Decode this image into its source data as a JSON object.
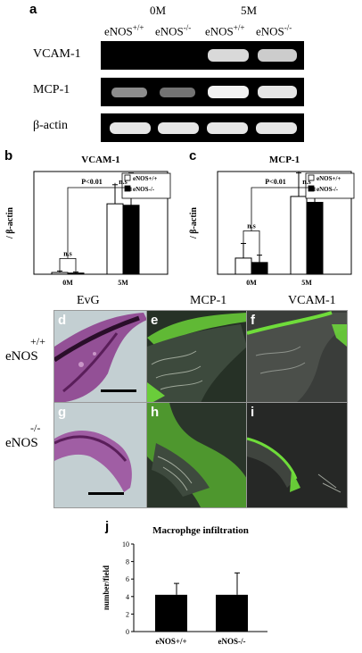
{
  "panel_a": {
    "letter": "a",
    "time_labels": [
      "0M",
      "5M"
    ],
    "genotypes": [
      "eNOS",
      "+/+",
      "eNOS",
      "-/-",
      "eNOS",
      "+/+",
      "eNOS",
      "-/-"
    ],
    "rows": [
      "VCAM-1",
      "MCP-1",
      "β-actin"
    ],
    "band_intensity": {
      "VCAM-1": [
        0.0,
        0.0,
        0.85,
        0.8
      ],
      "MCP-1": [
        0.55,
        0.45,
        0.95,
        0.9
      ],
      "β-actin": [
        0.9,
        0.9,
        0.9,
        0.9
      ]
    }
  },
  "panel_b": {
    "letter": "b",
    "chart_data": {
      "type": "bar",
      "title": "VCAM-1",
      "ylabel": "/ β-actin",
      "categories": [
        "0M",
        "5M"
      ],
      "ylim": [
        0,
        0.7
      ],
      "series": [
        {
          "name": "eNOS+/+",
          "values": [
            0.012,
            0.48
          ],
          "errors": [
            0.01,
            0.13
          ],
          "color": "#ffffff"
        },
        {
          "name": "eNOS-/-",
          "values": [
            0.008,
            0.47
          ],
          "errors": [
            0.008,
            0.22
          ],
          "color": "#000000"
        }
      ],
      "annotations": [
        "n.s",
        "P<0.01",
        "n.s"
      ],
      "legend_position": "top-right"
    }
  },
  "panel_c": {
    "letter": "c",
    "chart_data": {
      "type": "bar",
      "title": "MCP-1",
      "ylabel": "/ β-actin",
      "categories": [
        "0M",
        "5M"
      ],
      "ylim": [
        0,
        0.7
      ],
      "series": [
        {
          "name": "eNOS+/+",
          "values": [
            0.11,
            0.53
          ],
          "errors": [
            0.1,
            0.16
          ],
          "color": "#ffffff"
        },
        {
          "name": "eNOS-/-",
          "values": [
            0.08,
            0.49
          ],
          "errors": [
            0.05,
            0.07
          ],
          "color": "#000000"
        }
      ],
      "annotations": [
        "n.s",
        "P<0.01",
        "n.s"
      ],
      "legend_position": "top-right"
    }
  },
  "micrographs": {
    "column_headers": [
      "EvG",
      "MCP-1",
      "VCAM-1"
    ],
    "row_labels": [
      {
        "base": "eNOS",
        "sup": "+/+"
      },
      {
        "base": "eNOS",
        "sup": "-/-"
      }
    ],
    "panels": [
      {
        "letter": "d",
        "stain": "EvG"
      },
      {
        "letter": "e",
        "stain": "MCP-1"
      },
      {
        "letter": "f",
        "stain": "VCAM-1"
      },
      {
        "letter": "g",
        "stain": "EvG"
      },
      {
        "letter": "h",
        "stain": "MCP-1"
      },
      {
        "letter": "i",
        "stain": "VCAM-1"
      }
    ]
  },
  "panel_j": {
    "letter": "j",
    "chart_data": {
      "type": "bar",
      "title": "Macrophge infiltration",
      "ylabel": "number/field",
      "categories": [
        "eNOS+/+",
        "eNOS-/-"
      ],
      "yticks": [
        0,
        2,
        4,
        6,
        8,
        10
      ],
      "ylim": [
        0,
        10
      ],
      "values": [
        4.2,
        4.2
      ],
      "errors": [
        1.3,
        2.5
      ]
    }
  }
}
